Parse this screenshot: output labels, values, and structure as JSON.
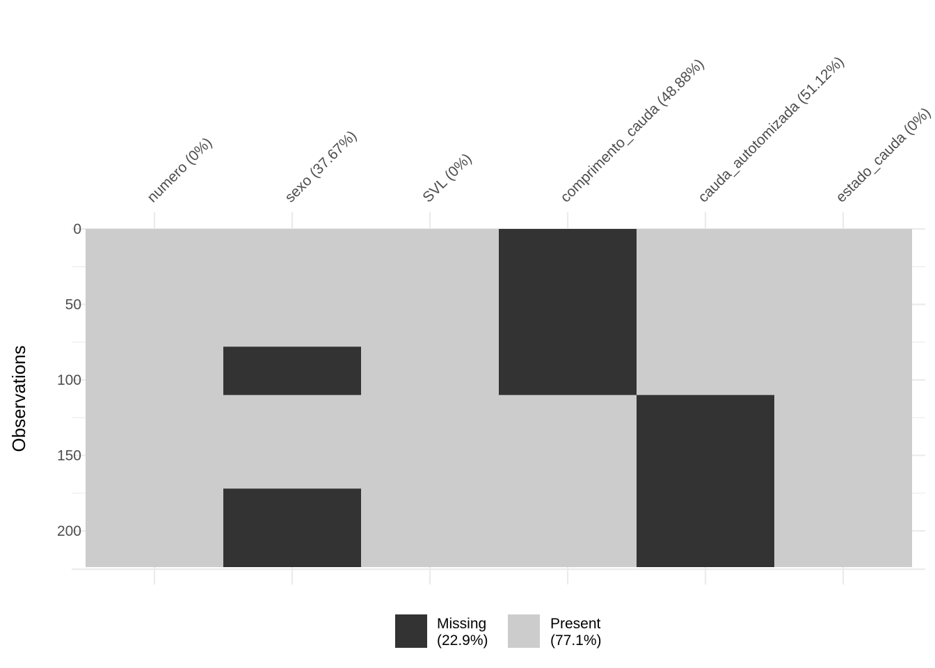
{
  "chart_data": {
    "type": "heatmap",
    "title": "",
    "xlabel": "",
    "ylabel": "Observations",
    "n_observations": 224,
    "ylim": [
      0,
      224
    ],
    "y_ticks": [
      0,
      50,
      100,
      150,
      200
    ],
    "columns": [
      {
        "label": "numero (0%)",
        "missing_ranges": []
      },
      {
        "label": "sexo (37.67%)",
        "missing_ranges": [
          [
            78,
            110
          ],
          [
            172,
            224
          ]
        ]
      },
      {
        "label": "SVL (0%)",
        "missing_ranges": []
      },
      {
        "label": "comprimento_cauda (48.88%)",
        "missing_ranges": [
          [
            0,
            110
          ]
        ]
      },
      {
        "label": "cauda_autotomizada (51.12%)",
        "missing_ranges": [
          [
            110,
            224
          ]
        ]
      },
      {
        "label": "estado_cauda (0%)",
        "missing_ranges": []
      }
    ],
    "legend": {
      "position": "bottom",
      "items": [
        {
          "line1": "Missing",
          "line2": "(22.9%)",
          "color": "#333333"
        },
        {
          "line1": "Present",
          "line2": "(77.1%)",
          "color": "#cccccc"
        }
      ]
    },
    "colors": {
      "missing": "#333333",
      "present": "#cccccc",
      "grid": "#ebebeb"
    },
    "grid": true
  }
}
